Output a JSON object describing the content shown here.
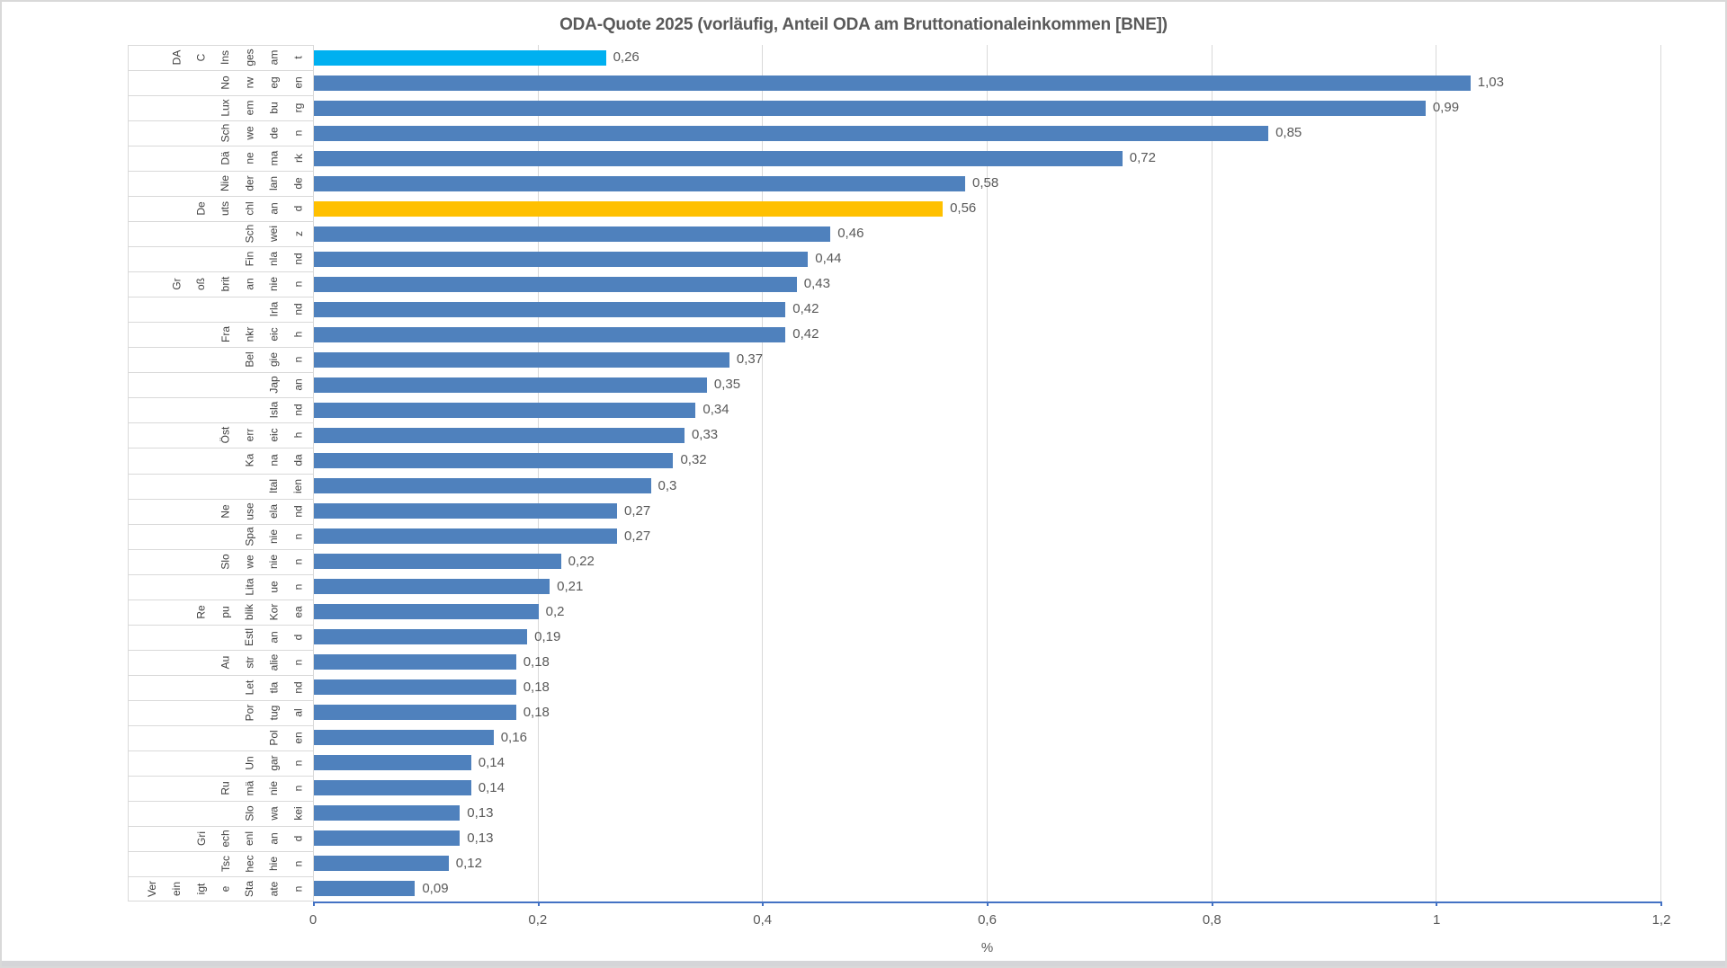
{
  "title": "ODA-Quote 2025 (vorläufig, Anteil ODA am Bruttonationaleinkommen [BNE])",
  "chart_data": {
    "type": "bar",
    "orientation": "horizontal",
    "title": "ODA-Quote 2025 (vorläufig, Anteil ODA am Bruttonationaleinkommen [BNE])",
    "xlabel": "%",
    "ylabel": "",
    "xlim": [
      0,
      1.2
    ],
    "grid": true,
    "x_ticks": [
      "0",
      "0,2",
      "0,4",
      "0,6",
      "0,8",
      "1",
      "1,2"
    ],
    "x_tick_values": [
      0,
      0.2,
      0.4,
      0.6,
      0.8,
      1.0,
      1.2
    ],
    "categories": [
      "DAC Insgesamt",
      "Norwegen",
      "Luxemburg",
      "Schweden",
      "Dänemark",
      "Niederlande",
      "Deutschland",
      "Schweiz",
      "Finnland",
      "Großbritannien",
      "Irland",
      "Frankreich",
      "Belgien",
      "Japan",
      "Island",
      "Österreich",
      "Kanada",
      "Italien",
      "Neuseeland",
      "Spanien",
      "Slowenien",
      "Litauen",
      "Republik Korea",
      "Estland",
      "Australien",
      "Lettland",
      "Portugal",
      "Polen",
      "Ungarn",
      "Rumänien",
      "Slowakei",
      "Griechenland",
      "Tschechien",
      "Vereinigte Staaten"
    ],
    "category_fragments": [
      [
        "DA",
        "C",
        "Ins",
        "ges",
        "am",
        "t"
      ],
      [
        "No",
        "rw",
        "eg",
        "en"
      ],
      [
        "Lux",
        "em",
        "bu",
        "rg"
      ],
      [
        "Sch",
        "we",
        "de",
        "n"
      ],
      [
        "Dä",
        "ne",
        "ma",
        "rk"
      ],
      [
        "Nie",
        "der",
        "lan",
        "de"
      ],
      [
        "De",
        "uts",
        "chl",
        "an",
        "d"
      ],
      [
        "Sch",
        "wei",
        "z"
      ],
      [
        "Fin",
        "nla",
        "nd"
      ],
      [
        "Gr",
        "oß",
        "brit",
        "an",
        "nie",
        "n"
      ],
      [
        "Irla",
        "nd"
      ],
      [
        "Fra",
        "nkr",
        "eic",
        "h"
      ],
      [
        "Bel",
        "gie",
        "n"
      ],
      [
        "Jap",
        "an"
      ],
      [
        "Isla",
        "nd"
      ],
      [
        "Öst",
        "err",
        "eic",
        "h"
      ],
      [
        "Ka",
        "na",
        "da"
      ],
      [
        "Ital",
        "ien"
      ],
      [
        "Ne",
        "use",
        "ela",
        "nd"
      ],
      [
        "Spa",
        "nie",
        "n"
      ],
      [
        "Slo",
        "we",
        "nie",
        "n"
      ],
      [
        "Lita",
        "ue",
        "n"
      ],
      [
        "Re",
        "pu",
        "blik",
        "Kor",
        "ea"
      ],
      [
        "Estl",
        "an",
        "d"
      ],
      [
        "Au",
        "str",
        "alie",
        "n"
      ],
      [
        "Let",
        "tla",
        "nd"
      ],
      [
        "Por",
        "tug",
        "al"
      ],
      [
        "Pol",
        "en"
      ],
      [
        "Un",
        "gar",
        "n"
      ],
      [
        "Ru",
        "mä",
        "nie",
        "n"
      ],
      [
        "Slo",
        "wa",
        "kei"
      ],
      [
        "Gri",
        "ech",
        "enl",
        "an",
        "d"
      ],
      [
        "Tsc",
        "hec",
        "hie",
        "n"
      ],
      [
        "Ver",
        "ein",
        "igt",
        "e",
        "Sta",
        "ate",
        "n"
      ]
    ],
    "values": [
      0.26,
      1.03,
      0.99,
      0.85,
      0.72,
      0.58,
      0.56,
      0.46,
      0.44,
      0.43,
      0.42,
      0.42,
      0.37,
      0.35,
      0.34,
      0.33,
      0.32,
      0.3,
      0.27,
      0.27,
      0.22,
      0.21,
      0.2,
      0.19,
      0.18,
      0.18,
      0.18,
      0.16,
      0.14,
      0.14,
      0.13,
      0.13,
      0.12,
      0.09
    ],
    "value_labels": [
      "0,26",
      "1,03",
      "0,99",
      "0,85",
      "0,72",
      "0,58",
      "0,56",
      "0,46",
      "0,44",
      "0,43",
      "0,42",
      "0,42",
      "0,37",
      "0,35",
      "0,34",
      "0,33",
      "0,32",
      "0,3",
      "0,27",
      "0,27",
      "0,22",
      "0,21",
      "0,2",
      "0,19",
      "0,18",
      "0,18",
      "0,18",
      "0,16",
      "0,14",
      "0,14",
      "0,13",
      "0,13",
      "0,12",
      "0,09"
    ],
    "bar_color_default": "#4F81BD",
    "bar_color_overrides": {
      "0": "#00B0F0",
      "6": "#FFC000"
    },
    "colors": {
      "gridline": "#D9D9D9",
      "axis_line": "#4472C4",
      "label_text": "#595959",
      "category_text": "#404040"
    },
    "legend": "none"
  }
}
